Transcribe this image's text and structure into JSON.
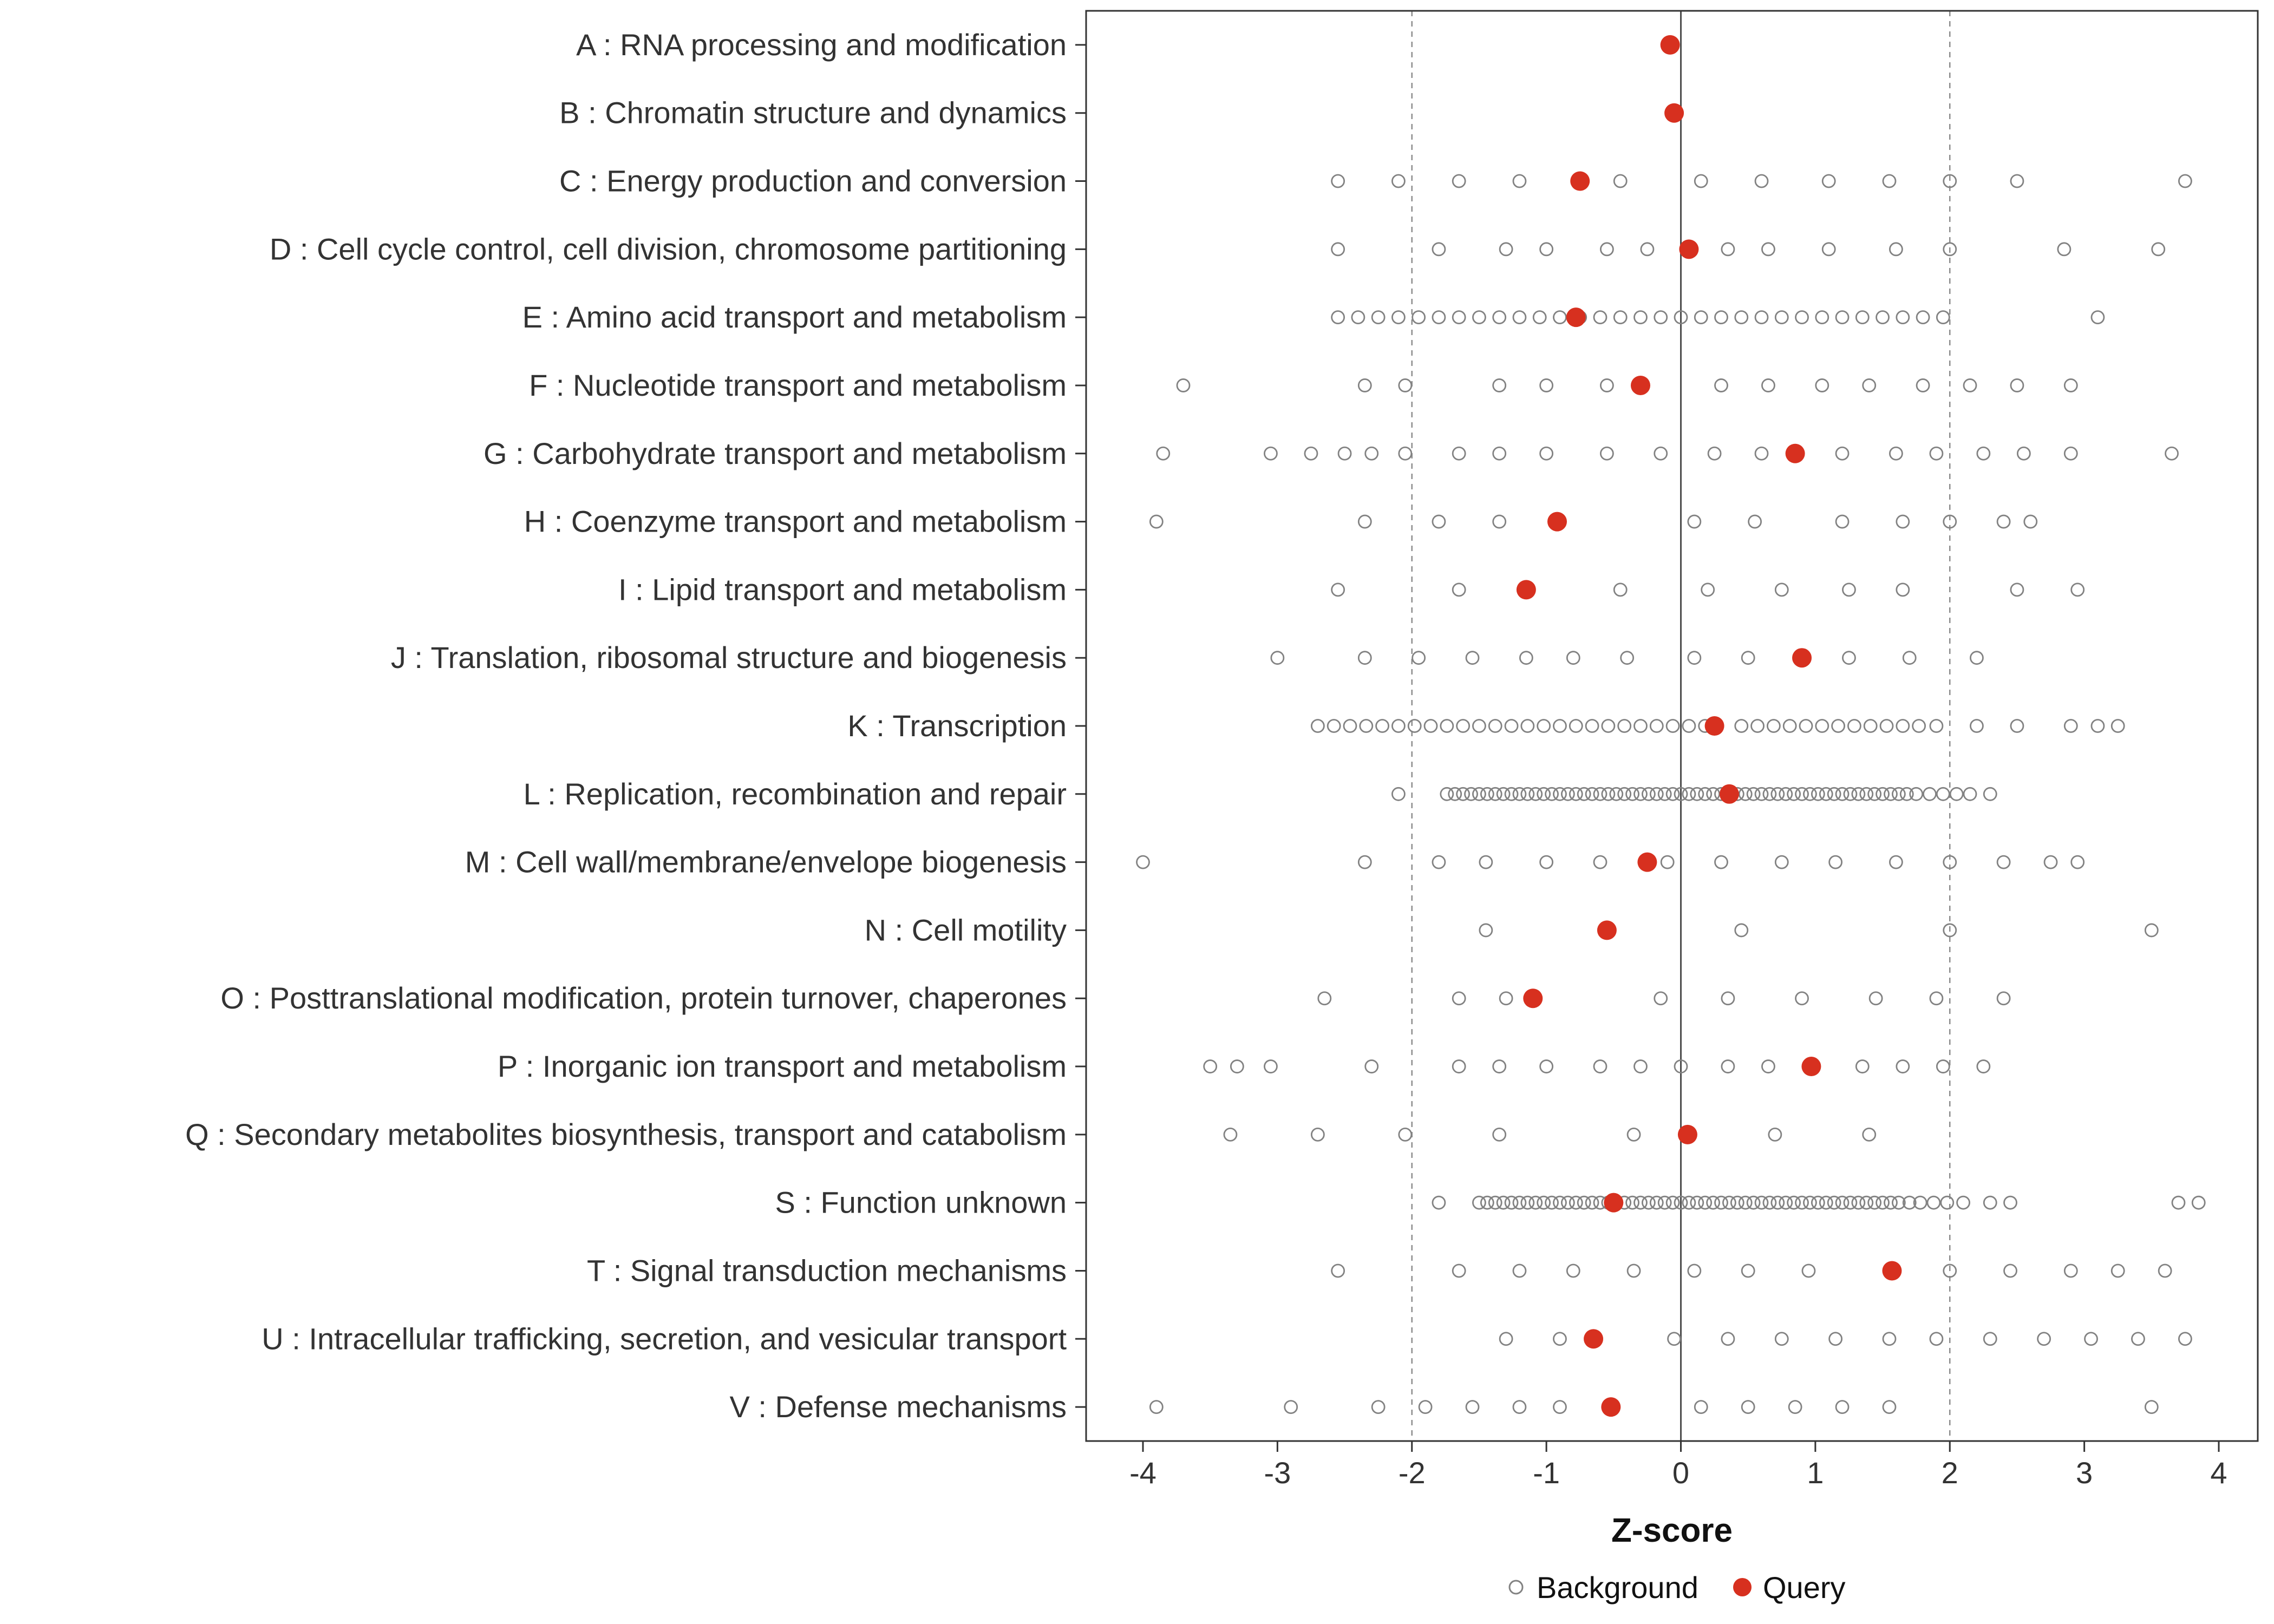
{
  "colors": {
    "query": "#d7301f",
    "background_stroke": "#828282",
    "axis_text": "#333333",
    "tick": "#333333",
    "panel_border": "#333333",
    "refline": "#8c8c8c",
    "zero_line": "#4d4d4d"
  },
  "chart_data": {
    "type": "scatter",
    "title": "",
    "xlabel": "Z-score",
    "ylabel": "",
    "xlim": [
      -4.4,
      4.3
    ],
    "xticks": [
      -4,
      -3,
      -2,
      -1,
      0,
      1,
      2,
      3,
      4
    ],
    "grid": false,
    "legend_position": "bottom",
    "reference_lines": {
      "dashed": [
        -2,
        2
      ],
      "solid": [
        0
      ]
    },
    "legend": [
      {
        "label": "Background",
        "marker": "open-circle"
      },
      {
        "label": "Query",
        "marker": "filled-circle"
      }
    ],
    "categories": [
      "A : RNA processing and modification",
      "B : Chromatin structure and dynamics",
      "C : Energy production and conversion",
      "D : Cell cycle control, cell division, chromosome partitioning",
      "E : Amino acid transport and metabolism",
      "F : Nucleotide transport and metabolism",
      "G : Carbohydrate transport and metabolism",
      "H : Coenzyme transport and metabolism",
      "I : Lipid transport and metabolism",
      "J : Translation, ribosomal structure and biogenesis",
      "K : Transcription",
      "L : Replication, recombination and repair",
      "M : Cell wall/membrane/envelope biogenesis",
      "N : Cell motility",
      "O : Posttranslational modification, protein turnover, chaperones",
      "P : Inorganic ion transport and metabolism",
      "Q : Secondary metabolites biosynthesis, transport and catabolism",
      "S : Function unknown",
      "T : Signal transduction mechanisms",
      "U : Intracellular trafficking, secretion, and vesicular transport",
      "V : Defense mechanisms"
    ],
    "query": [
      -0.08,
      -0.05,
      -0.75,
      0.06,
      -0.78,
      -0.3,
      0.85,
      -0.92,
      -1.15,
      0.9,
      0.25,
      0.36,
      -0.25,
      -0.55,
      -1.1,
      0.97,
      0.05,
      -0.5,
      1.57,
      -0.65,
      -0.52
    ],
    "background": [
      [],
      [],
      [
        -2.55,
        -2.1,
        -1.65,
        -1.2,
        -0.45,
        0.15,
        0.6,
        1.1,
        1.55,
        2.0,
        2.5,
        3.75
      ],
      [
        -2.55,
        -1.8,
        -1.3,
        -1.0,
        -0.55,
        -0.25,
        0.35,
        0.65,
        1.1,
        1.6,
        2.0,
        2.85,
        3.55
      ],
      [
        -2.55,
        -2.4,
        -2.25,
        -2.1,
        -1.95,
        -1.8,
        -1.65,
        -1.5,
        -1.35,
        -1.2,
        -1.05,
        -0.9,
        -0.75,
        -0.6,
        -0.45,
        -0.3,
        -0.15,
        0.0,
        0.15,
        0.3,
        0.45,
        0.6,
        0.75,
        0.9,
        1.05,
        1.2,
        1.35,
        1.5,
        1.65,
        1.8,
        1.95,
        3.1
      ],
      [
        -3.7,
        -2.35,
        -2.05,
        -1.35,
        -1.0,
        -0.55,
        0.3,
        0.65,
        1.05,
        1.4,
        1.8,
        2.15,
        2.5,
        2.9
      ],
      [
        -3.85,
        -3.05,
        -2.75,
        -2.5,
        -2.3,
        -2.05,
        -1.65,
        -1.35,
        -1.0,
        -0.55,
        -0.15,
        0.25,
        0.6,
        1.2,
        1.6,
        1.9,
        2.25,
        2.55,
        2.9,
        3.65
      ],
      [
        -3.9,
        -2.35,
        -1.8,
        -1.35,
        0.1,
        0.55,
        1.2,
        1.65,
        2.0,
        2.4,
        2.6
      ],
      [
        -2.55,
        -1.65,
        -0.45,
        0.2,
        0.75,
        1.25,
        1.65,
        2.5,
        2.95
      ],
      [
        -3.0,
        -2.35,
        -1.95,
        -1.55,
        -1.15,
        -0.8,
        -0.4,
        0.1,
        0.5,
        1.25,
        1.7,
        2.2
      ],
      [
        -2.7,
        -2.58,
        -2.46,
        -2.34,
        -2.22,
        -2.1,
        -1.98,
        -1.86,
        -1.74,
        -1.62,
        -1.5,
        -1.38,
        -1.26,
        -1.14,
        -1.02,
        -0.9,
        -0.78,
        -0.66,
        -0.54,
        -0.42,
        -0.3,
        -0.18,
        -0.06,
        0.06,
        0.18,
        0.45,
        0.57,
        0.69,
        0.81,
        0.93,
        1.05,
        1.17,
        1.29,
        1.41,
        1.53,
        1.65,
        1.77,
        1.9,
        2.2,
        2.5,
        2.9,
        3.1,
        3.25
      ],
      [
        -2.1,
        -1.74,
        -1.68,
        -1.62,
        -1.56,
        -1.5,
        -1.44,
        -1.38,
        -1.32,
        -1.26,
        -1.2,
        -1.14,
        -1.08,
        -1.02,
        -0.96,
        -0.9,
        -0.84,
        -0.78,
        -0.72,
        -0.66,
        -0.6,
        -0.54,
        -0.48,
        -0.42,
        -0.36,
        -0.3,
        -0.24,
        -0.18,
        -0.12,
        -0.06,
        0.0,
        0.06,
        0.12,
        0.18,
        0.24,
        0.3,
        0.36,
        0.42,
        0.48,
        0.54,
        0.6,
        0.66,
        0.72,
        0.78,
        0.84,
        0.9,
        0.96,
        1.02,
        1.08,
        1.14,
        1.2,
        1.26,
        1.32,
        1.38,
        1.44,
        1.5,
        1.56,
        1.62,
        1.68,
        1.75,
        1.85,
        1.95,
        2.05,
        2.15,
        2.3
      ],
      [
        -4.0,
        -2.35,
        -1.8,
        -1.45,
        -1.0,
        -0.6,
        -0.1,
        0.3,
        0.75,
        1.15,
        1.6,
        2.0,
        2.4,
        2.75,
        2.95
      ],
      [
        -1.45,
        0.45,
        2.0,
        3.5
      ],
      [
        -2.65,
        -1.65,
        -1.3,
        -0.15,
        0.35,
        0.9,
        1.45,
        1.9,
        2.4
      ],
      [
        -3.5,
        -3.3,
        -3.05,
        -2.3,
        -1.65,
        -1.35,
        -1.0,
        -0.6,
        -0.3,
        0.0,
        0.35,
        0.65,
        1.35,
        1.65,
        1.95,
        2.25
      ],
      [
        -3.35,
        -2.7,
        -2.05,
        -1.35,
        -0.35,
        0.7,
        1.4
      ],
      [
        -1.8,
        -1.5,
        -1.44,
        -1.38,
        -1.32,
        -1.26,
        -1.2,
        -1.14,
        -1.08,
        -1.02,
        -0.96,
        -0.9,
        -0.84,
        -0.78,
        -0.72,
        -0.66,
        -0.6,
        -0.54,
        -0.48,
        -0.42,
        -0.36,
        -0.3,
        -0.24,
        -0.18,
        -0.12,
        -0.06,
        0.0,
        0.06,
        0.12,
        0.18,
        0.24,
        0.3,
        0.36,
        0.42,
        0.48,
        0.54,
        0.6,
        0.66,
        0.72,
        0.78,
        0.84,
        0.9,
        0.96,
        1.02,
        1.08,
        1.14,
        1.2,
        1.26,
        1.32,
        1.38,
        1.44,
        1.5,
        1.56,
        1.62,
        1.7,
        1.78,
        1.88,
        1.98,
        2.1,
        2.3,
        2.45,
        3.7,
        3.85
      ],
      [
        -2.55,
        -1.65,
        -1.2,
        -0.8,
        -0.35,
        0.1,
        0.5,
        0.95,
        2.0,
        2.45,
        2.9,
        3.25,
        3.6
      ],
      [
        -1.3,
        -0.9,
        -0.05,
        0.35,
        0.75,
        1.15,
        1.55,
        1.9,
        2.3,
        2.7,
        3.05,
        3.4,
        3.75
      ],
      [
        -3.9,
        -2.9,
        -2.25,
        -1.9,
        -1.55,
        -1.2,
        -0.9,
        0.15,
        0.5,
        0.85,
        1.2,
        1.55,
        3.5
      ]
    ]
  }
}
